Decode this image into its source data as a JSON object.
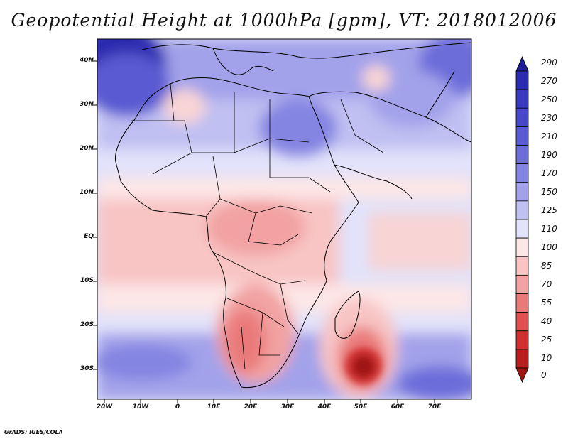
{
  "title": "Geopotential Height at 1000hPa [gpm], VT: 2018012006",
  "credit": "GrADS: IGES/COLA",
  "lat_labels": [
    "40N",
    "30N",
    "20N",
    "10N",
    "EQ",
    "10S",
    "20S",
    "30S"
  ],
  "lon_labels": [
    "20W",
    "10W",
    "0",
    "10E",
    "20E",
    "30E",
    "40E",
    "50E",
    "60E",
    "70E"
  ],
  "colorbar": {
    "levels": [
      "290",
      "270",
      "250",
      "230",
      "210",
      "190",
      "170",
      "150",
      "125",
      "110",
      "100",
      "85",
      "70",
      "55",
      "40",
      "25",
      "10",
      "0"
    ],
    "colors": [
      "#1e1e96",
      "#2b2baf",
      "#3a3abf",
      "#4848c8",
      "#5a5ad2",
      "#6d6dda",
      "#8484e2",
      "#a2a2ea",
      "#c0c0f2",
      "#e2e2fa",
      "#fde6e6",
      "#f8c4c4",
      "#f2a2a2",
      "#ea7a7a",
      "#e05050",
      "#d03030",
      "#b81e1e",
      "#a01414"
    ]
  },
  "map": {
    "region": "Africa and Middle East",
    "variable": "Geopotential Height at 1000hPa",
    "units": "gpm",
    "valid_time": "2018012006"
  }
}
